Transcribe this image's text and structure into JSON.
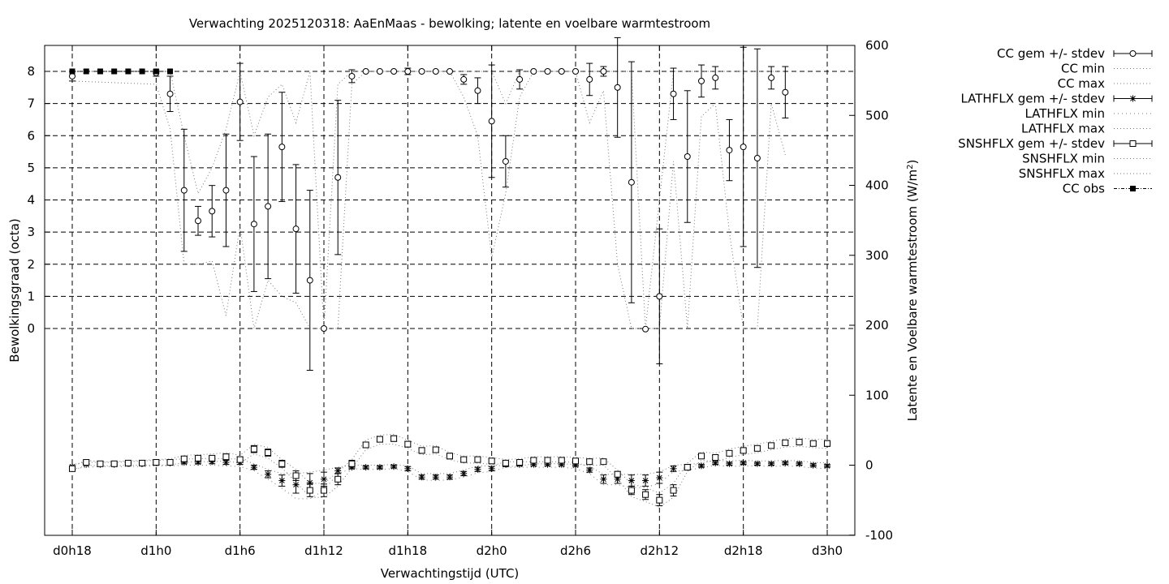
{
  "chart_data": {
    "type": "scatter",
    "title": "Verwachting 2025120318: AaEnMaas - bewolking; latente en voelbare warmtestroom",
    "xlabel": "Verwachtingstijd (UTC)",
    "ylabel": "Bewolkingsgraad (octa)",
    "y2label_main": "Latente en Voelbare warmtestroom (W/m",
    "y2label_sup": "2",
    "y2label_end": ")",
    "xlim": [
      0,
      54
    ],
    "ylim": [
      -6.4,
      8.8
    ],
    "y2lim": [
      -100,
      600
    ],
    "x_ticks": [
      {
        "v": 0,
        "label": "d0h18"
      },
      {
        "v": 6,
        "label": "d1h0"
      },
      {
        "v": 12,
        "label": "d1h6"
      },
      {
        "v": 18,
        "label": "d1h12"
      },
      {
        "v": 24,
        "label": "d1h18"
      },
      {
        "v": 30,
        "label": "d2h0"
      },
      {
        "v": 36,
        "label": "d2h6"
      },
      {
        "v": 42,
        "label": "d2h12"
      },
      {
        "v": 48,
        "label": "d2h18"
      },
      {
        "v": 54,
        "label": "d3h0"
      }
    ],
    "y_ticks": [
      "0",
      "1",
      "2",
      "3",
      "4",
      "5",
      "6",
      "7",
      "8"
    ],
    "y2_ticks": [
      "-100",
      "0",
      "100",
      "200",
      "300",
      "400",
      "500",
      "600"
    ],
    "grid": true,
    "legend_position": "outside-right",
    "legend": [
      {
        "label": "CC gem +/- stdev",
        "style": "errbar-circle"
      },
      {
        "label": "CC min",
        "style": "dotted"
      },
      {
        "label": "CC max",
        "style": "dotted"
      },
      {
        "label": "LATHFLX gem +/- stdev",
        "style": "errbar-star"
      },
      {
        "label": "LATHFLX min",
        "style": "dotted-coarse"
      },
      {
        "label": "LATHFLX max",
        "style": "dotted"
      },
      {
        "label": "SNSHFLX gem +/- stdev",
        "style": "errbar-square"
      },
      {
        "label": "SNSHFLX min",
        "style": "dotted"
      },
      {
        "label": "SNSHFLX max",
        "style": "dotted"
      },
      {
        "label": "CC obs",
        "style": "filled-square-line"
      }
    ],
    "series": [
      {
        "name": "CC gem +/- stdev",
        "axis": "y",
        "x": [
          0,
          6,
          7,
          8,
          9,
          10,
          11,
          12,
          13,
          14,
          15,
          16,
          17,
          18,
          19,
          20,
          21,
          22,
          23,
          24,
          25,
          26,
          27,
          28,
          29,
          30,
          31,
          32,
          33,
          34,
          35,
          36,
          37,
          38,
          39,
          40,
          41,
          42,
          43,
          44,
          45,
          46,
          47,
          48,
          49,
          50,
          51,
          52,
          53,
          54
        ],
        "mean": [
          7.85,
          7.95,
          7.3,
          4.3,
          3.35,
          3.65,
          4.3,
          7.05,
          3.25,
          3.8,
          5.65,
          3.1,
          1.5,
          0.0,
          4.7,
          7.85,
          8.0,
          8.0,
          8.0,
          8.0,
          8.0,
          8.0,
          8.0,
          7.75,
          7.4,
          6.45,
          5.2,
          7.75,
          8.0,
          8.0,
          8.0,
          8.0,
          7.75,
          8.0,
          7.5,
          4.55,
          -0.02,
          1.0,
          7.3,
          5.35,
          7.7,
          7.8,
          5.55,
          5.65,
          5.3,
          7.8,
          7.35,
          null,
          null,
          null
        ],
        "stdev": [
          0.15,
          0.1,
          0.55,
          1.9,
          0.45,
          0.8,
          1.75,
          1.2,
          2.1,
          2.25,
          1.7,
          2.0,
          2.8,
          0.0,
          2.4,
          0.2,
          0.0,
          0.0,
          0.0,
          0.1,
          0.0,
          0.0,
          0.0,
          0.15,
          0.4,
          1.75,
          0.8,
          0.3,
          0.0,
          0.0,
          0.0,
          0.0,
          0.5,
          0.15,
          1.55,
          3.75,
          0.0,
          2.1,
          0.8,
          2.05,
          0.5,
          0.35,
          0.95,
          3.1,
          3.4,
          0.35,
          0.8,
          null,
          null,
          null
        ]
      },
      {
        "name": "CC min",
        "axis": "y",
        "x": [
          0,
          6,
          7,
          8,
          9,
          10,
          11,
          12,
          13,
          14,
          15,
          16,
          17,
          18,
          19,
          20,
          21,
          22,
          23,
          24,
          25,
          26,
          27,
          28,
          29,
          30,
          31,
          32,
          33,
          34,
          35,
          36,
          37,
          38,
          39,
          40,
          41,
          42,
          43,
          44,
          45,
          46,
          47,
          48,
          49,
          50,
          51,
          52,
          53,
          54
        ],
        "values": [
          7.7,
          7.6,
          6.2,
          2.0,
          2.0,
          2.1,
          0.4,
          3.2,
          0.0,
          1.5,
          1.0,
          0.8,
          0.0,
          0.0,
          0.0,
          7.6,
          8.0,
          8.0,
          8.0,
          8.0,
          8.0,
          8.0,
          8.0,
          7.2,
          6.0,
          2.2,
          4.2,
          7.2,
          8.0,
          8.0,
          8.0,
          8.0,
          6.4,
          7.4,
          2.0,
          0.0,
          0.0,
          0.0,
          5.2,
          0.0,
          6.6,
          7.0,
          3.0,
          0.0,
          0.0,
          7.0,
          5.4,
          null,
          null,
          null
        ]
      },
      {
        "name": "CC max",
        "axis": "y",
        "x": [
          0,
          6,
          7,
          8,
          9,
          10,
          11,
          12,
          13,
          14,
          15,
          16,
          17,
          18,
          19,
          20,
          21,
          22,
          23,
          24,
          25,
          26,
          27,
          28,
          29,
          30,
          31,
          32,
          33,
          34,
          35,
          36,
          37,
          38,
          39,
          40,
          41,
          42,
          43,
          44,
          45,
          46,
          47,
          48,
          49,
          50,
          51,
          52,
          53,
          54
        ],
        "values": [
          8.0,
          8.0,
          8.0,
          6.0,
          4.2,
          5.0,
          6.2,
          8.0,
          6.0,
          7.2,
          7.6,
          6.4,
          8.0,
          0.0,
          7.6,
          8.0,
          8.0,
          8.0,
          8.0,
          8.0,
          8.0,
          8.0,
          8.0,
          8.0,
          8.0,
          8.0,
          7.0,
          8.0,
          8.0,
          8.0,
          8.0,
          8.0,
          8.0,
          8.0,
          8.0,
          8.0,
          0.0,
          4.0,
          8.0,
          8.0,
          8.0,
          8.0,
          8.0,
          8.0,
          8.0,
          8.0,
          8.0,
          null,
          null,
          null
        ]
      },
      {
        "name": "CC obs",
        "axis": "y",
        "x": [
          0,
          1,
          2,
          3,
          4,
          5,
          6,
          7
        ],
        "values": [
          8,
          8,
          8,
          8,
          8,
          8,
          8,
          8
        ]
      },
      {
        "name": "LATHFLX gem +/- stdev",
        "axis": "y2",
        "x": [
          0,
          1,
          2,
          3,
          4,
          5,
          6,
          7,
          8,
          9,
          10,
          11,
          12,
          13,
          14,
          15,
          16,
          17,
          18,
          19,
          20,
          21,
          22,
          23,
          24,
          25,
          26,
          27,
          28,
          29,
          30,
          31,
          32,
          33,
          34,
          35,
          36,
          37,
          38,
          39,
          40,
          41,
          42,
          43,
          44,
          45,
          46,
          47,
          48,
          49,
          50,
          51,
          52,
          53,
          54
        ],
        "mean": [
          -2,
          1,
          1,
          1,
          2,
          2,
          3,
          3,
          4,
          4,
          5,
          4,
          4,
          -3,
          -13,
          -22,
          -28,
          -25,
          -20,
          -8,
          -3,
          -3,
          -3,
          -2,
          -5,
          -17,
          -17,
          -17,
          -12,
          -6,
          -5,
          1,
          1,
          1,
          1,
          1,
          0,
          -7,
          -20,
          -20,
          -22,
          -22,
          -18,
          -5,
          -3,
          -1,
          3,
          2,
          3,
          2,
          2,
          3,
          2,
          0,
          -1
        ],
        "stdev": [
          1,
          1,
          1,
          1,
          1,
          1,
          2,
          2,
          2,
          2,
          3,
          3,
          3,
          3,
          5,
          8,
          12,
          13,
          10,
          4,
          2,
          2,
          2,
          2,
          3,
          3,
          3,
          3,
          3,
          3,
          3,
          3,
          2,
          2,
          2,
          2,
          2,
          3,
          6,
          6,
          8,
          8,
          8,
          4,
          3,
          2,
          2,
          2,
          2,
          2,
          2,
          2,
          2,
          2,
          2
        ]
      },
      {
        "name": "LATHFLX min",
        "axis": "y2",
        "x": [
          0,
          1,
          2,
          3,
          4,
          5,
          6,
          7,
          8,
          9,
          10,
          11,
          12,
          13,
          14,
          15,
          16,
          17,
          18,
          19,
          20,
          21,
          22,
          23,
          24,
          25,
          26,
          27,
          28,
          29,
          30,
          31,
          32,
          33,
          34,
          35,
          36,
          37,
          38,
          39,
          40,
          41,
          42,
          43,
          44,
          45,
          46,
          47,
          48,
          49,
          50,
          51,
          52,
          53,
          54
        ],
        "values": [
          -5,
          -3,
          -2,
          -2,
          -2,
          -2,
          -1,
          -1,
          0,
          0,
          0,
          -1,
          -2,
          -8,
          -20,
          -33,
          -48,
          -48,
          -36,
          -12,
          -5,
          -6,
          -6,
          -5,
          -9,
          -21,
          -22,
          -21,
          -17,
          -11,
          -9,
          -3,
          -3,
          -3,
          -3,
          -3,
          -5,
          -12,
          -28,
          -28,
          -32,
          -32,
          -26,
          -9,
          -7,
          -4,
          0,
          -2,
          -1,
          -1,
          -2,
          -1,
          -2,
          -4,
          -5
        ]
      },
      {
        "name": "LATHFLX max",
        "axis": "y2",
        "x": [
          0,
          1,
          2,
          3,
          4,
          5,
          6,
          7,
          8,
          9,
          10,
          11,
          12,
          13,
          14,
          15,
          16,
          17,
          18,
          19,
          20,
          21,
          22,
          23,
          24,
          25,
          26,
          27,
          28,
          29,
          30,
          31,
          32,
          33,
          34,
          35,
          36,
          37,
          38,
          39,
          40,
          41,
          42,
          43,
          44,
          45,
          46,
          47,
          48,
          49,
          50,
          51,
          52,
          53,
          54
        ],
        "values": [
          1,
          4,
          4,
          4,
          5,
          6,
          7,
          8,
          9,
          9,
          10,
          9,
          9,
          2,
          -6,
          -12,
          -12,
          -10,
          -7,
          -3,
          0,
          0,
          0,
          1,
          -1,
          -12,
          -12,
          -12,
          -7,
          -1,
          -1,
          5,
          5,
          5,
          5,
          5,
          4,
          -2,
          -13,
          -13,
          -13,
          -13,
          -10,
          0,
          1,
          3,
          7,
          6,
          7,
          6,
          6,
          7,
          6,
          4,
          3
        ]
      },
      {
        "name": "SNSHFLX gem +/- stdev",
        "axis": "y2",
        "x": [
          0,
          1,
          2,
          3,
          4,
          5,
          6,
          7,
          8,
          9,
          10,
          11,
          12,
          13,
          14,
          15,
          16,
          17,
          18,
          19,
          20,
          21,
          22,
          23,
          24,
          25,
          26,
          27,
          28,
          29,
          30,
          31,
          32,
          33,
          34,
          35,
          36,
          37,
          38,
          39,
          40,
          41,
          42,
          43,
          44,
          45,
          46,
          47,
          48,
          49,
          50,
          51,
          52,
          53,
          54
        ],
        "mean": [
          -5,
          4,
          2,
          2,
          3,
          3,
          4,
          4,
          9,
          10,
          10,
          12,
          8,
          23,
          18,
          2,
          -15,
          -36,
          -36,
          -20,
          2,
          29,
          37,
          38,
          30,
          21,
          22,
          13,
          8,
          8,
          6,
          3,
          4,
          7,
          7,
          7,
          6,
          5,
          5,
          -13,
          -36,
          -42,
          -50,
          -36,
          -3,
          13,
          11,
          17,
          21,
          24,
          28,
          32,
          33,
          31,
          31
        ],
        "stdev": [
          3,
          2,
          2,
          2,
          2,
          2,
          3,
          3,
          3,
          3,
          3,
          4,
          4,
          5,
          5,
          5,
          7,
          9,
          9,
          8,
          5,
          4,
          4,
          4,
          4,
          4,
          4,
          4,
          3,
          3,
          3,
          3,
          3,
          3,
          3,
          3,
          3,
          3,
          3,
          4,
          6,
          7,
          8,
          8,
          4,
          3,
          3,
          3,
          3,
          3,
          3,
          3,
          3,
          3,
          4
        ]
      },
      {
        "name": "SNSHFLX min",
        "axis": "y2",
        "x": [
          0,
          1,
          2,
          3,
          4,
          5,
          6,
          7,
          8,
          9,
          10,
          11,
          12,
          13,
          14,
          15,
          16,
          17,
          18,
          19,
          20,
          21,
          22,
          23,
          24,
          25,
          26,
          27,
          28,
          29,
          30,
          31,
          32,
          33,
          34,
          35,
          36,
          37,
          38,
          39,
          40,
          41,
          42,
          43,
          44,
          45,
          46,
          47,
          48,
          49,
          50,
          51,
          52,
          53,
          54
        ],
        "values": [
          -8,
          0,
          -1,
          -1,
          0,
          0,
          0,
          0,
          4,
          5,
          5,
          6,
          3,
          16,
          10,
          -4,
          -24,
          -46,
          -46,
          -30,
          -4,
          22,
          30,
          30,
          24,
          15,
          16,
          8,
          3,
          3,
          1,
          -2,
          -1,
          2,
          2,
          2,
          1,
          0,
          0,
          -19,
          -45,
          -52,
          -60,
          -46,
          -9,
          7,
          5,
          11,
          15,
          18,
          22,
          26,
          27,
          25,
          24
        ]
      },
      {
        "name": "SNSHFLX max",
        "axis": "y2",
        "x": [
          0,
          1,
          2,
          3,
          4,
          5,
          6,
          7,
          8,
          9,
          10,
          11,
          12,
          13,
          14,
          15,
          16,
          17,
          18,
          19,
          20,
          21,
          22,
          23,
          24,
          25,
          26,
          27,
          28,
          29,
          30,
          31,
          32,
          33,
          34,
          35,
          36,
          37,
          38,
          39,
          40,
          41,
          42,
          43,
          44,
          45,
          46,
          47,
          48,
          49,
          50,
          51,
          52,
          53,
          54
        ],
        "values": [
          -2,
          7,
          5,
          5,
          6,
          7,
          8,
          9,
          14,
          15,
          16,
          18,
          14,
          30,
          25,
          8,
          -6,
          -26,
          -26,
          -10,
          8,
          36,
          43,
          44,
          36,
          27,
          28,
          18,
          13,
          13,
          11,
          8,
          9,
          12,
          12,
          12,
          11,
          10,
          10,
          -7,
          -27,
          -32,
          -40,
          -26,
          3,
          19,
          17,
          23,
          27,
          30,
          34,
          38,
          39,
          37,
          37
        ]
      }
    ]
  }
}
